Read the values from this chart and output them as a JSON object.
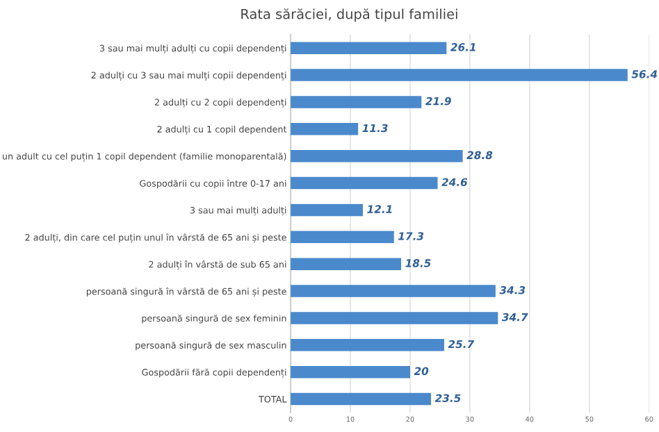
{
  "chart_data": {
    "type": "bar",
    "orientation": "horizontal",
    "title": "Rata sărăciei, după tipul familiei",
    "categories": [
      "3 sau mai mulți adulți cu copii dependenți",
      "2 adulți cu 3 sau mai mulți copii dependenți",
      "2 adulți cu 2 copii dependenți",
      "2 adulți cu 1 copil dependent",
      "un adult cu cel puțin 1 copil dependent (familie monoparentală)",
      "Gospodării cu copii între 0-17 ani",
      "3 sau mai mulți adulți",
      "2 adulți, din care cel puțin unul în vârstă de 65 ani și peste",
      "2 adulți în vârstă de sub 65 ani",
      "persoană singură în vârstă de 65 ani și peste",
      "persoană singură de sex feminin",
      "persoană singură de sex masculin",
      "Gospodării fără copii dependenți",
      "TOTAL"
    ],
    "values": [
      26.1,
      56.4,
      21.9,
      11.3,
      28.8,
      24.6,
      12.1,
      17.3,
      18.5,
      34.3,
      34.7,
      25.7,
      20,
      23.5
    ],
    "color": "#4a89cc",
    "data_labels": true,
    "xlim": [
      0,
      60
    ],
    "xticks": [
      0,
      10,
      20,
      30,
      40,
      50,
      60
    ],
    "grid": "x",
    "legend": false
  }
}
